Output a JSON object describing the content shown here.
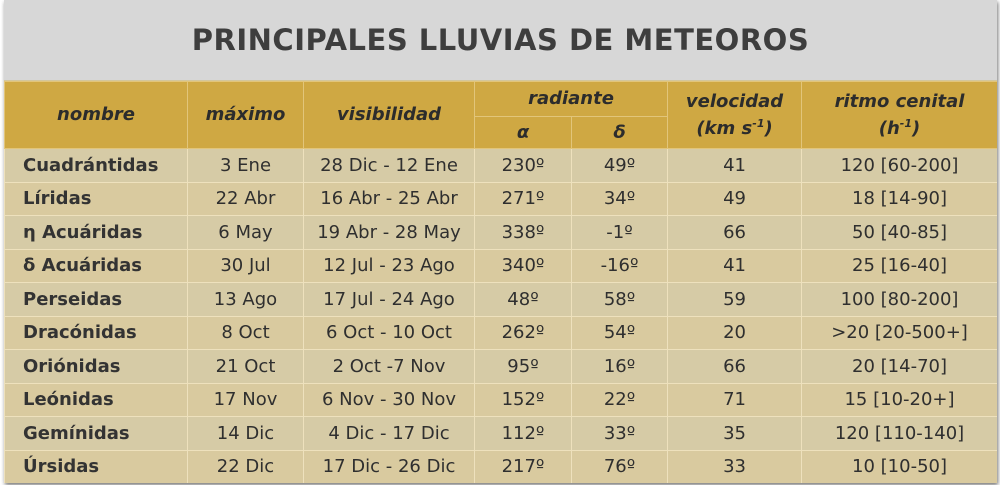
{
  "title": "PRINCIPALES LLUVIAS DE METEOROS",
  "headers": {
    "nombre": "nombre",
    "maximo": "máximo",
    "visibilidad": "visibilidad",
    "radiante": "radiante",
    "alpha": "α",
    "delta": "δ",
    "velocidad": "velocidad",
    "velocidad_unit": "(km s",
    "velocidad_exp": "-1",
    "velocidad_close": ")",
    "ritmo": "ritmo cenital",
    "ritmo_unit": "(h",
    "ritmo_exp": "-1",
    "ritmo_close": ")"
  },
  "rows": [
    {
      "nombre": "Cuadrántidas",
      "maximo": "3 Ene",
      "visibilidad": "28 Dic - 12 Ene",
      "alpha": "230º",
      "delta": "49º",
      "velocidad": "41",
      "ritmo": "120 [60-200]"
    },
    {
      "nombre": "Líridas",
      "maximo": "22 Abr",
      "visibilidad": "16 Abr - 25 Abr",
      "alpha": "271º",
      "delta": "34º",
      "velocidad": "49",
      "ritmo": "18 [14-90]"
    },
    {
      "nombre": "η Acuáridas",
      "maximo": "6 May",
      "visibilidad": "19 Abr - 28 May",
      "alpha": "338º",
      "delta": "-1º",
      "velocidad": "66",
      "ritmo": "50 [40-85]"
    },
    {
      "nombre": "δ Acuáridas",
      "maximo": "30 Jul",
      "visibilidad": "12 Jul - 23 Ago",
      "alpha": "340º",
      "delta": "-16º",
      "velocidad": "41",
      "ritmo": "25 [16-40]"
    },
    {
      "nombre": "Perseidas",
      "maximo": "13 Ago",
      "visibilidad": "17 Jul - 24 Ago",
      "alpha": "48º",
      "delta": "58º",
      "velocidad": "59",
      "ritmo": "100 [80-200]"
    },
    {
      "nombre": "Dracónidas",
      "maximo": "8 Oct",
      "visibilidad": "6 Oct - 10 Oct",
      "alpha": "262º",
      "delta": "54º",
      "velocidad": "20",
      "ritmo": ">20 [20-500+]"
    },
    {
      "nombre": "Oriónidas",
      "maximo": "21 Oct",
      "visibilidad": "2 Oct -7 Nov",
      "alpha": "95º",
      "delta": "16º",
      "velocidad": "66",
      "ritmo": "20 [14-70]"
    },
    {
      "nombre": "Leónidas",
      "maximo": "17 Nov",
      "visibilidad": "6 Nov - 30 Nov",
      "alpha": "152º",
      "delta": "22º",
      "velocidad": "71",
      "ritmo": "15 [10-20+]"
    },
    {
      "nombre": "Gemínidas",
      "maximo": "14 Dic",
      "visibilidad": "4 Dic - 17 Dic",
      "alpha": "112º",
      "delta": "33º",
      "velocidad": "35",
      "ritmo": "120 [110-140]"
    },
    {
      "nombre": "Úrsidas",
      "maximo": "22 Dic",
      "visibilidad": "17 Dic - 26 Dic",
      "alpha": "217º",
      "delta": "76º",
      "velocidad": "33",
      "ritmo": "10 [10-50]"
    }
  ]
}
